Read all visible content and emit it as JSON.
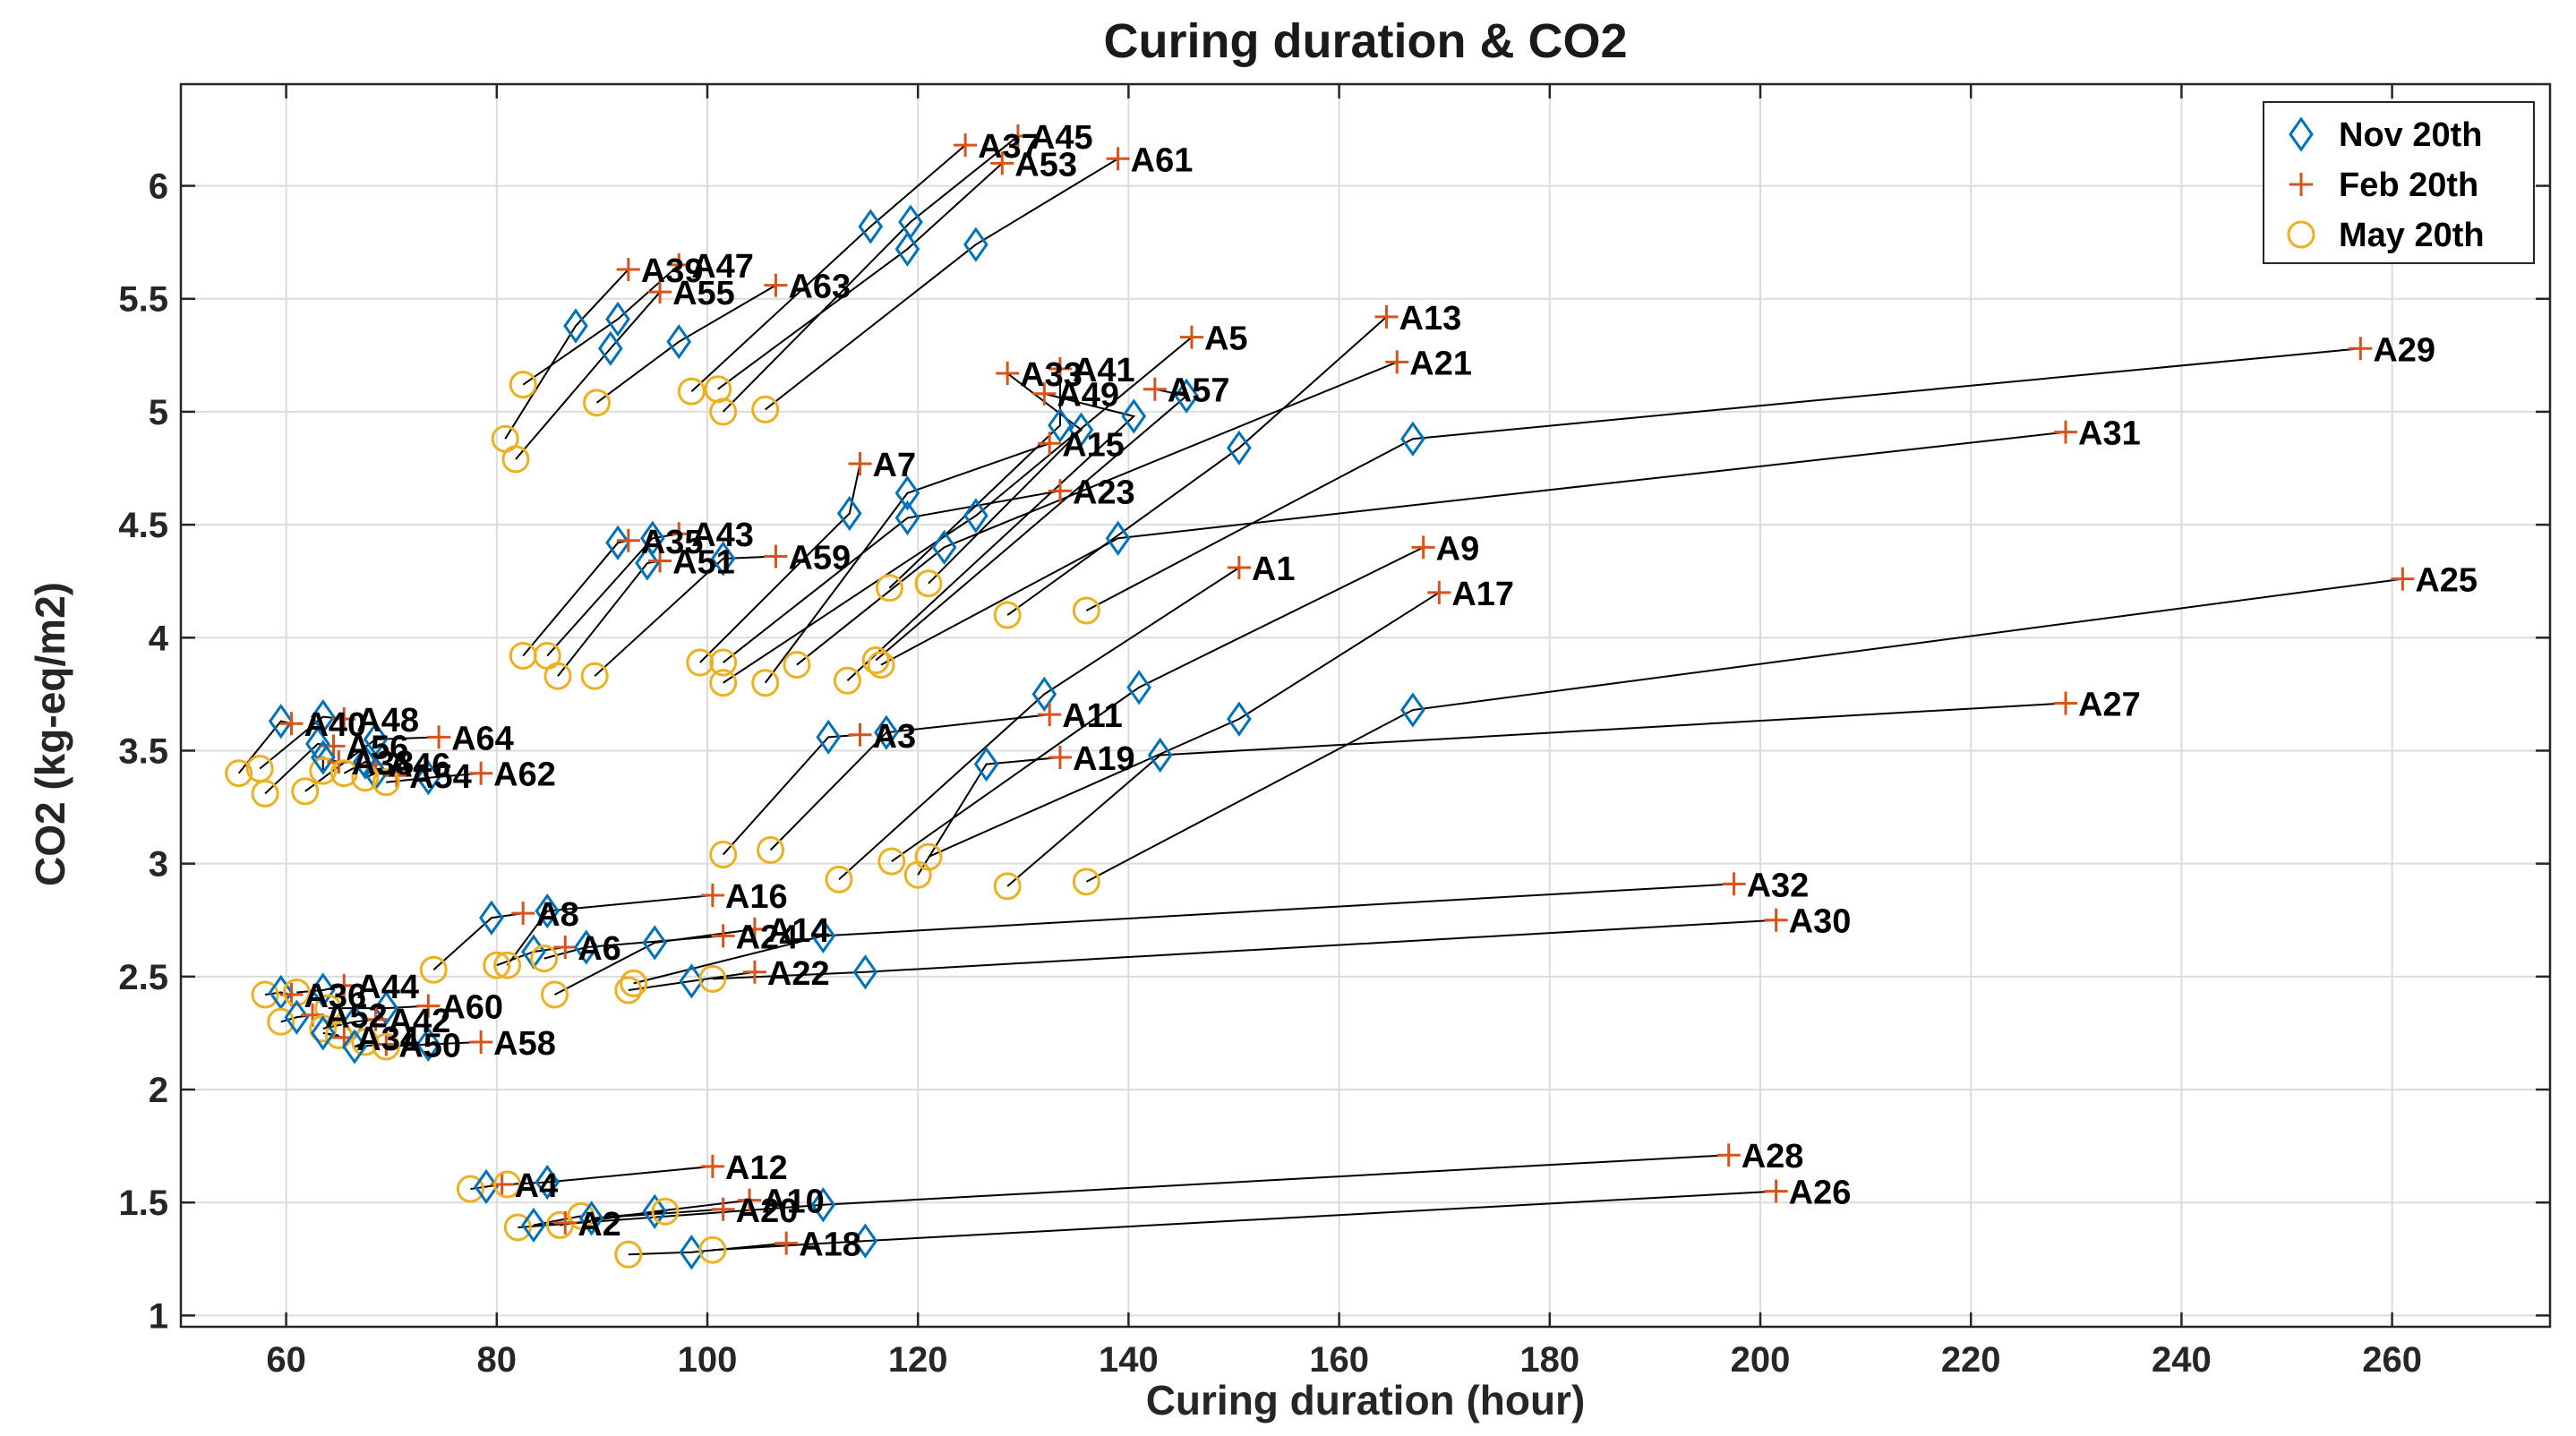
{
  "chart_data": {
    "type": "scatter",
    "title": "Curing duration & CO2",
    "xlabel": "Curing duration  (hour)",
    "ylabel": "CO2 (kg-eq/m2)",
    "xlim": [
      50,
      275
    ],
    "ylim": [
      0.95,
      6.45
    ],
    "xticks": [
      60,
      80,
      100,
      120,
      140,
      160,
      180,
      200,
      220,
      240,
      260
    ],
    "yticks": [
      1,
      1.5,
      2,
      2.5,
      3,
      3.5,
      4,
      4.5,
      5,
      5.5,
      6
    ],
    "grid": true,
    "legend_position": "top-right",
    "legend": [
      {
        "name": "Nov 20th",
        "marker": "diamond",
        "color": "#0072BD"
      },
      {
        "name": "Feb 20th",
        "marker": "plus",
        "color": "#D95319"
      },
      {
        "name": "May 20th",
        "marker": "circle",
        "color": "#EDB120"
      }
    ],
    "points": [
      {
        "label": "A45",
        "nov": [
          119.3,
          5.84
        ],
        "feb": [
          129.5,
          6.22
        ],
        "may": [
          101.5,
          5.0
        ]
      },
      {
        "label": "A37",
        "nov": [
          115.5,
          5.82
        ],
        "feb": [
          124.5,
          6.18
        ],
        "may": [
          98.5,
          5.09
        ]
      },
      {
        "label": "A53",
        "nov": [
          119.0,
          5.72
        ],
        "feb": [
          128.0,
          6.1
        ],
        "may": [
          101.0,
          5.1
        ]
      },
      {
        "label": "A61",
        "nov": [
          125.5,
          5.74
        ],
        "feb": [
          139.0,
          6.12
        ],
        "may": [
          105.5,
          5.01
        ]
      },
      {
        "label": "A39",
        "nov": [
          87.5,
          5.38
        ],
        "feb": [
          92.5,
          5.63
        ],
        "may": [
          80.8,
          4.88
        ]
      },
      {
        "label": "A47",
        "nov": [
          91.5,
          5.41
        ],
        "feb": [
          97.3,
          5.65
        ],
        "may": [
          82.5,
          5.12
        ]
      },
      {
        "label": "A55",
        "nov": [
          90.8,
          5.28
        ],
        "feb": [
          95.5,
          5.53
        ],
        "may": [
          81.8,
          4.79
        ]
      },
      {
        "label": "A63",
        "nov": [
          97.3,
          5.31
        ],
        "feb": [
          106.5,
          5.56
        ],
        "may": [
          89.5,
          5.04
        ]
      },
      {
        "label": "A33",
        "nov": [
          135.5,
          4.92
        ],
        "feb": [
          128.5,
          5.17
        ],
        "may": [
          121.0,
          4.24
        ]
      },
      {
        "label": "A41",
        "nov": [
          133.5,
          4.94
        ],
        "feb": [
          133.5,
          5.19
        ],
        "may": [
          117.3,
          4.22
        ]
      },
      {
        "label": "A49",
        "nov": [
          140.5,
          4.98
        ],
        "feb": [
          132.0,
          5.08
        ],
        "may": [
          113.3,
          3.81
        ]
      },
      {
        "label": "A57",
        "nov": [
          145.5,
          5.07
        ],
        "feb": [
          142.5,
          5.1
        ],
        "may": [
          116.0,
          3.9
        ]
      },
      {
        "label": "A5",
        "nov": [
          125.5,
          4.54
        ],
        "feb": [
          146.0,
          5.33
        ],
        "may": [
          101.5,
          3.8
        ]
      },
      {
        "label": "A13",
        "nov": [
          150.5,
          4.84
        ],
        "feb": [
          164.5,
          5.42
        ],
        "may": [
          128.5,
          4.1
        ]
      },
      {
        "label": "A21",
        "nov": [
          122.5,
          4.4
        ],
        "feb": [
          165.5,
          5.22
        ],
        "may": [
          108.5,
          3.88
        ]
      },
      {
        "label": "A29",
        "nov": [
          167.0,
          4.88
        ],
        "feb": [
          257.0,
          5.28
        ],
        "may": [
          136.0,
          4.12
        ]
      },
      {
        "label": "A7",
        "nov": [
          113.5,
          4.55
        ],
        "feb": [
          114.5,
          4.77
        ],
        "may": [
          99.3,
          3.89
        ]
      },
      {
        "label": "A15",
        "nov": [
          119.0,
          4.64
        ],
        "feb": [
          132.5,
          4.86
        ],
        "may": [
          105.5,
          3.8
        ]
      },
      {
        "label": "A23",
        "nov": [
          119.0,
          4.53
        ],
        "feb": [
          133.5,
          4.65
        ],
        "may": [
          101.5,
          3.89
        ]
      },
      {
        "label": "A31",
        "nov": [
          139.0,
          4.44
        ],
        "feb": [
          229.0,
          4.91
        ],
        "may": [
          116.5,
          3.88
        ]
      },
      {
        "label": "A35",
        "nov": [
          91.5,
          4.42
        ],
        "feb": [
          92.5,
          4.43
        ],
        "may": [
          82.5,
          3.92
        ]
      },
      {
        "label": "A43",
        "nov": [
          94.8,
          4.44
        ],
        "feb": [
          97.3,
          4.46
        ],
        "may": [
          84.8,
          3.92
        ]
      },
      {
        "label": "A51",
        "nov": [
          94.3,
          4.33
        ],
        "feb": [
          95.5,
          4.34
        ],
        "may": [
          85.8,
          3.83
        ]
      },
      {
        "label": "A59",
        "nov": [
          101.5,
          4.35
        ],
        "feb": [
          106.5,
          4.36
        ],
        "may": [
          89.3,
          3.83
        ]
      },
      {
        "label": "A1",
        "nov": [
          132.0,
          3.75
        ],
        "feb": [
          150.5,
          4.31
        ],
        "may": [
          112.5,
          2.93
        ]
      },
      {
        "label": "A9",
        "nov": [
          141.0,
          3.78
        ],
        "feb": [
          168.0,
          4.4
        ],
        "may": [
          117.5,
          3.01
        ]
      },
      {
        "label": "A17",
        "nov": [
          150.5,
          3.64
        ],
        "feb": [
          169.5,
          4.2
        ],
        "may": [
          121.0,
          3.03
        ]
      },
      {
        "label": "A25",
        "nov": [
          167.0,
          3.68
        ],
        "feb": [
          261.0,
          4.26
        ],
        "may": [
          136.0,
          2.92
        ]
      },
      {
        "label": "A3",
        "nov": [
          111.5,
          3.56
        ],
        "feb": [
          114.5,
          3.57
        ],
        "may": [
          101.5,
          3.04
        ]
      },
      {
        "label": "A11",
        "nov": [
          117.0,
          3.58
        ],
        "feb": [
          132.5,
          3.66
        ],
        "may": [
          106.0,
          3.06
        ]
      },
      {
        "label": "A19",
        "nov": [
          126.5,
          3.44
        ],
        "feb": [
          133.5,
          3.47
        ],
        "may": [
          120.0,
          2.95
        ]
      },
      {
        "label": "A27",
        "nov": [
          143.0,
          3.48
        ],
        "feb": [
          229.0,
          3.71
        ],
        "may": [
          128.5,
          2.9
        ]
      },
      {
        "label": "A40",
        "nov": [
          59.5,
          3.63
        ],
        "feb": [
          60.5,
          3.62
        ],
        "may": [
          55.5,
          3.4
        ]
      },
      {
        "label": "A48",
        "nov": [
          63.5,
          3.65
        ],
        "feb": [
          65.5,
          3.64
        ],
        "may": [
          57.5,
          3.42
        ]
      },
      {
        "label": "A56",
        "nov": [
          63.0,
          3.53
        ],
        "feb": [
          64.5,
          3.52
        ],
        "may": [
          58.0,
          3.31
        ]
      },
      {
        "label": "A64",
        "nov": [
          68.5,
          3.55
        ],
        "feb": [
          74.5,
          3.56
        ],
        "may": [
          61.8,
          3.32
        ]
      },
      {
        "label": "A38",
        "nov": [
          63.5,
          3.47
        ],
        "feb": [
          65.0,
          3.45
        ],
        "may": [
          63.5,
          3.41
        ]
      },
      {
        "label": "A46",
        "nov": [
          67.5,
          3.45
        ],
        "feb": [
          68.5,
          3.44
        ],
        "may": [
          65.5,
          3.4
        ]
      },
      {
        "label": "A54",
        "nov": [
          68.5,
          3.4
        ],
        "feb": [
          70.5,
          3.39
        ],
        "may": [
          67.5,
          3.38
        ]
      },
      {
        "label": "A62",
        "nov": [
          73.5,
          3.38
        ],
        "feb": [
          78.5,
          3.4
        ],
        "may": [
          69.5,
          3.36
        ]
      },
      {
        "label": "A8",
        "nov": [
          79.5,
          2.76
        ],
        "feb": [
          82.5,
          2.78
        ],
        "may": [
          74.0,
          2.53
        ]
      },
      {
        "label": "A16",
        "nov": [
          84.8,
          2.79
        ],
        "feb": [
          100.5,
          2.86
        ],
        "may": [
          81.0,
          2.55
        ]
      },
      {
        "label": "A14",
        "nov": [
          95.0,
          2.65
        ],
        "feb": [
          104.5,
          2.71
        ],
        "may": [
          85.5,
          2.42
        ]
      },
      {
        "label": "A32",
        "nov": [
          111.0,
          2.68
        ],
        "feb": [
          197.5,
          2.91
        ],
        "may": [
          93.0,
          2.47
        ]
      },
      {
        "label": "A6",
        "nov": [
          83.5,
          2.61
        ],
        "feb": [
          86.5,
          2.63
        ],
        "may": [
          80.0,
          2.55
        ]
      },
      {
        "label": "A24",
        "nov": [
          88.5,
          2.63
        ],
        "feb": [
          101.5,
          2.68
        ],
        "may": [
          84.5,
          2.58
        ]
      },
      {
        "label": "A22",
        "nov": [
          98.5,
          2.48
        ],
        "feb": [
          104.5,
          2.52
        ],
        "may": [
          92.5,
          2.44
        ]
      },
      {
        "label": "A30",
        "nov": [
          115.0,
          2.52
        ],
        "feb": [
          201.5,
          2.75
        ],
        "may": [
          100.5,
          2.49
        ]
      },
      {
        "label": "A36",
        "nov": [
          59.5,
          2.43
        ],
        "feb": [
          60.5,
          2.42
        ],
        "may": [
          58.0,
          2.42
        ]
      },
      {
        "label": "A44",
        "nov": [
          63.5,
          2.44
        ],
        "feb": [
          65.5,
          2.46
        ],
        "may": [
          61.0,
          2.43
        ]
      },
      {
        "label": "A60",
        "nov": [
          69.5,
          2.36
        ],
        "feb": [
          73.5,
          2.37
        ],
        "may": [
          64.0,
          2.36
        ]
      },
      {
        "label": "A52",
        "nov": [
          61.0,
          2.32
        ],
        "feb": [
          62.5,
          2.33
        ],
        "may": [
          59.5,
          2.3
        ]
      },
      {
        "label": "A42",
        "nov": [
          66.5,
          2.3
        ],
        "feb": [
          68.5,
          2.31
        ],
        "may": [
          63.5,
          2.27
        ]
      },
      {
        "label": "A34",
        "nov": [
          63.5,
          2.25
        ],
        "feb": [
          65.5,
          2.23
        ],
        "may": [
          65.0,
          2.24
        ]
      },
      {
        "label": "A50",
        "nov": [
          66.5,
          2.19
        ],
        "feb": [
          69.5,
          2.2
        ],
        "may": [
          67.5,
          2.21
        ]
      },
      {
        "label": "A58",
        "nov": [
          73.5,
          2.2
        ],
        "feb": [
          78.5,
          2.21
        ],
        "may": [
          69.5,
          2.19
        ]
      },
      {
        "label": "A4",
        "nov": [
          79.0,
          1.57
        ],
        "feb": [
          80.5,
          1.58
        ],
        "may": [
          77.5,
          1.56
        ]
      },
      {
        "label": "A12",
        "nov": [
          84.8,
          1.59
        ],
        "feb": [
          100.5,
          1.66
        ],
        "may": [
          81.0,
          1.58
        ]
      },
      {
        "label": "A10",
        "nov": [
          95.0,
          1.46
        ],
        "feb": [
          104.0,
          1.51
        ],
        "may": [
          86.0,
          1.4
        ]
      },
      {
        "label": "A28",
        "nov": [
          111.0,
          1.49
        ],
        "feb": [
          197.0,
          1.71
        ],
        "may": [
          82.0,
          1.39
        ]
      },
      {
        "label": "A2",
        "nov": [
          83.5,
          1.4
        ],
        "feb": [
          86.5,
          1.41
        ],
        "may": [
          88.0,
          1.44
        ]
      },
      {
        "label": "A20",
        "nov": [
          89.0,
          1.43
        ],
        "feb": [
          101.5,
          1.47
        ],
        "may": [
          96.0,
          1.46
        ]
      },
      {
        "label": "A18",
        "nov": [
          98.5,
          1.28
        ],
        "feb": [
          107.5,
          1.32
        ],
        "may": [
          92.5,
          1.27
        ]
      },
      {
        "label": "A26",
        "nov": [
          115.0,
          1.33
        ],
        "feb": [
          201.5,
          1.55
        ],
        "may": [
          100.5,
          1.29
        ]
      }
    ]
  }
}
